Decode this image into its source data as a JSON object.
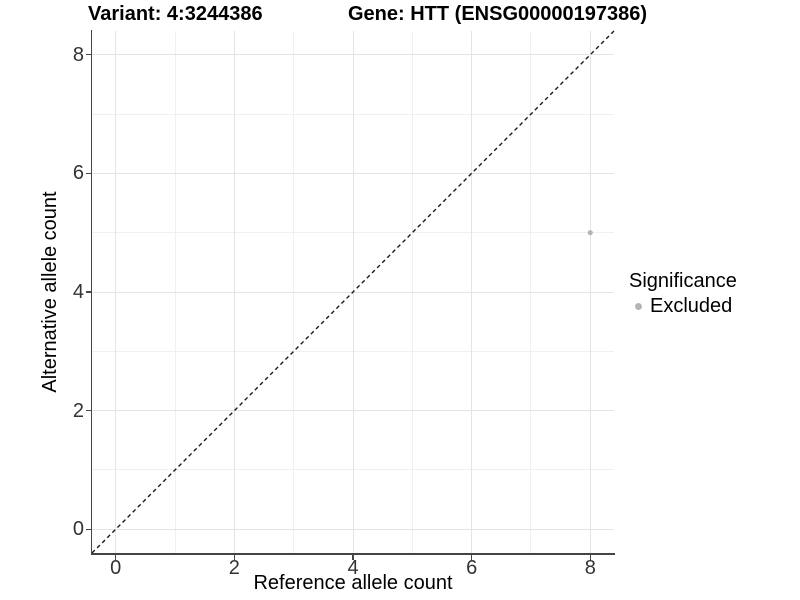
{
  "chart_data": {
    "type": "scatter",
    "title_left": "Variant: 4:3244386",
    "title_right": "Gene: HTT (ENSG00000197386)",
    "xlabel": "Reference allele count",
    "ylabel": "Alternative allele count",
    "xlim": [
      -0.4,
      8.4
    ],
    "ylim": [
      -0.4,
      8.4
    ],
    "x_major_ticks": [
      0,
      2,
      4,
      6,
      8
    ],
    "x_minor_ticks": [
      1,
      3,
      5,
      7
    ],
    "y_major_ticks": [
      0,
      2,
      4,
      6,
      8
    ],
    "y_minor_ticks": [
      1,
      3,
      5,
      7
    ],
    "grid": "major+minor",
    "points": [
      {
        "x": 8,
        "y": 5,
        "series": "Excluded"
      }
    ],
    "identity_line": {
      "slope": 1,
      "intercept": 0,
      "style": "dashed"
    },
    "legend": {
      "title": "Significance",
      "position": "right",
      "entries": [
        {
          "label": "Excluded",
          "color": "#b5b5b5"
        }
      ]
    },
    "colors": {
      "point": "#b5b5b5",
      "grid_major": "#e4e4e4",
      "grid_minor": "#f0f0f0",
      "axis_line": "#454545",
      "tick_label": "#333333",
      "dashed_line": "#1a1a1a"
    }
  }
}
